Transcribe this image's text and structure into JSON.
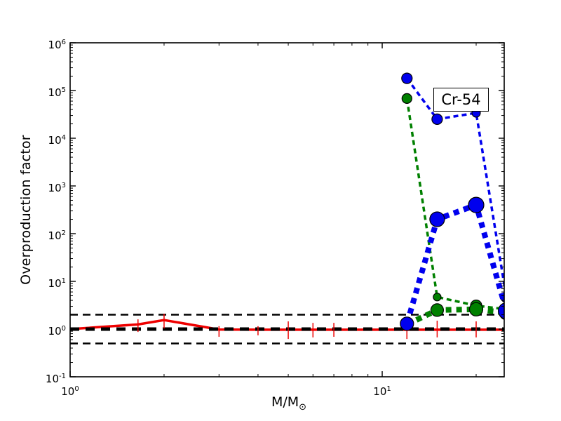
{
  "chart_data": {
    "type": "line",
    "title": "",
    "xlabel": "M/M⊙",
    "xlabel_main": "M/M",
    "xlabel_sub": "⊙",
    "ylabel": "Overproduction factor",
    "annotation": "Cr-54",
    "x_scale": "log",
    "y_scale": "log",
    "xlim": [
      1,
      24.6
    ],
    "ylim": [
      0.1,
      1000000
    ],
    "grid": false,
    "legend": null,
    "tick_label_base": "10",
    "x_ticks": [
      {
        "value": 1,
        "exp": "0"
      },
      {
        "value": 10,
        "exp": "1"
      }
    ],
    "y_ticks": [
      {
        "value": 0.1,
        "exp": "-1"
      },
      {
        "value": 1,
        "exp": "0"
      },
      {
        "value": 10,
        "exp": "1"
      },
      {
        "value": 100,
        "exp": "2"
      },
      {
        "value": 1000,
        "exp": "3"
      },
      {
        "value": 10000,
        "exp": "4"
      },
      {
        "value": 100000,
        "exp": "5"
      },
      {
        "value": 1000000,
        "exp": "6"
      }
    ],
    "reference_lines": [
      {
        "name": "factor-two-upper-band",
        "y": 2,
        "color": "#000000",
        "line_width": 2.5,
        "dash": [
          11,
          7
        ]
      },
      {
        "name": "solar-normalization",
        "y": 1,
        "color": "#000000",
        "line_width": 5,
        "dash": [
          13,
          9
        ]
      },
      {
        "name": "factor-two-lower-band",
        "y": 0.5,
        "color": "#000000",
        "line_width": 2.5,
        "dash": [
          11,
          7
        ]
      }
    ],
    "series": [
      {
        "name": "red-solid-low-mass-models",
        "color": "#ee0000",
        "style": "solid",
        "line_width": 3.5,
        "marker": "none",
        "x": [
          1,
          1.65,
          2,
          3,
          4,
          5,
          6,
          7,
          12,
          15,
          20,
          24.6
        ],
        "y": [
          1.0,
          1.25,
          1.55,
          0.98,
          0.97,
          0.97,
          0.97,
          0.97,
          0.97,
          0.97,
          0.97,
          0.97
        ]
      },
      {
        "name": "green-thin-dashed-models",
        "color": "#008000",
        "style": "dashed",
        "line_width": 3.5,
        "dash": [
          7,
          5
        ],
        "marker": "circle",
        "x": [
          12,
          15,
          20,
          25
        ],
        "y": [
          68000,
          4.7,
          3.1,
          2.6
        ],
        "marker_radii": [
          7,
          5.5,
          8,
          7
        ]
      },
      {
        "name": "blue-thin-dashed-models",
        "color": "#0000ee",
        "style": "dashed",
        "line_width": 3.5,
        "dash": [
          7,
          5
        ],
        "marker": "circle",
        "x": [
          12,
          15,
          20,
          25
        ],
        "y": [
          180000,
          25000,
          34000,
          4.6
        ],
        "marker_radii": [
          7.5,
          7.5,
          6,
          7.5
        ]
      },
      {
        "name": "green-thick-dashed-models",
        "color": "#008000",
        "style": "dashed",
        "line_width": 8,
        "dash": [
          8,
          7
        ],
        "marker": "circle",
        "x": [
          12,
          15,
          20,
          25
        ],
        "y": [
          1.25,
          2.5,
          2.6,
          2.2
        ],
        "marker_radii": [
          8,
          9,
          9.5,
          10
        ]
      },
      {
        "name": "blue-thick-dashed-models",
        "color": "#0000ee",
        "style": "dashed",
        "line_width": 8,
        "dash": [
          8,
          7
        ],
        "marker": "circle",
        "x": [
          12,
          15,
          20,
          25
        ],
        "y": [
          1.3,
          200,
          400,
          2.4
        ],
        "marker_radii": [
          9.5,
          10.5,
          11,
          11.5
        ]
      }
    ],
    "error_bars": {
      "name": "red-error-bars",
      "color": "#ee0000",
      "line_width": 1.5,
      "points": [
        {
          "x": 1.65,
          "lo": 0.87,
          "hi": 1.6
        },
        {
          "x": 2,
          "lo": 1.03,
          "hi": 2.1
        },
        {
          "x": 3,
          "lo": 0.69,
          "hi": 1.15
        },
        {
          "x": 4,
          "lo": 0.74,
          "hi": 1.15
        },
        {
          "x": 5,
          "lo": 0.62,
          "hi": 1.45
        },
        {
          "x": 6,
          "lo": 0.67,
          "hi": 1.35
        },
        {
          "x": 7,
          "lo": 0.69,
          "hi": 1.35
        },
        {
          "x": 12,
          "lo": 0.62,
          "hi": 1.45
        },
        {
          "x": 15,
          "lo": 0.67,
          "hi": 1.5
        },
        {
          "x": 20,
          "lo": 0.67,
          "hi": 1.45
        }
      ]
    }
  }
}
